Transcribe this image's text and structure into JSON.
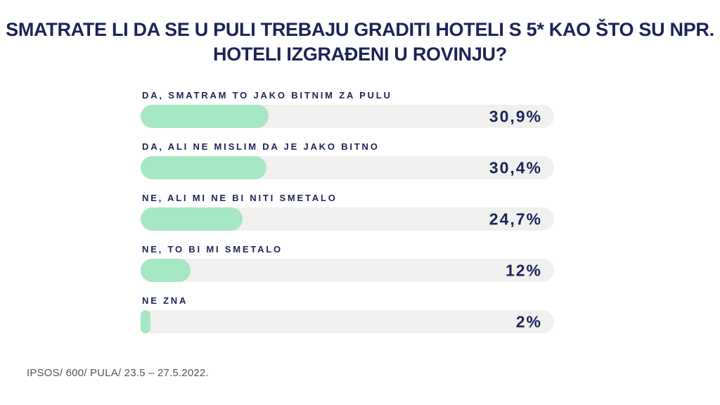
{
  "header": {
    "title_line1": "SMATRATE LI DA SE U PULI TREBAJU GRADITI HOTELI S 5* KAO ŠTO SU NPR.",
    "title_line2": "HOTELI IZGRAĐENI U ROVINJU?"
  },
  "footer": {
    "source": "IPSOS/ 600/ PULA/ 23.5 – 27.5.2022."
  },
  "colors": {
    "title_navy": "#1c2457",
    "bar_fill_green": "#a6e7c3",
    "bar_track_gray": "#f0f0ef",
    "source_gray": "#55565b",
    "background": "#ffffff"
  },
  "chart_data": {
    "type": "bar",
    "orientation": "horizontal",
    "title": "SMATRATE LI DA SE U PULI TREBAJU GRADITI HOTELI S 5* KAO ŠTO SU NPR. HOTELI IZGRAĐENI U ROVINJU?",
    "categories": [
      "DA, SMATRAM TO JAKO BITNIM ZA PULU",
      "DA, ALI NE MISLIM DA JE JAKO BITNO",
      "NE, ALI MI NE BI NITI SMETALO",
      "NE, TO BI MI SMETALO",
      "NE ZNA"
    ],
    "values": [
      30.9,
      30.4,
      24.7,
      12,
      2
    ],
    "value_labels": [
      "30,9%",
      "30,4%",
      "24,7%",
      "12%",
      "2%"
    ],
    "unit": "%",
    "xlim": [
      0,
      100
    ],
    "grid": false,
    "legend": false,
    "axes_visible": false,
    "source": "IPSOS/ 600/ PULA/ 23.5 – 27.5.2022."
  }
}
